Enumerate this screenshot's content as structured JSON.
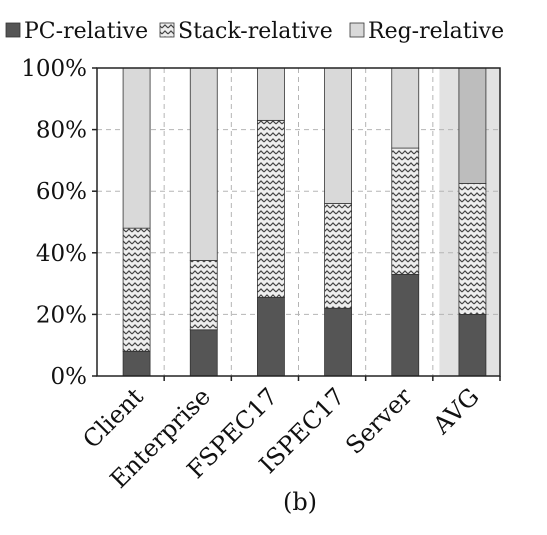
{
  "chart_data": {
    "type": "bar",
    "stacked": true,
    "categories": [
      "Client",
      "Enterprise",
      "FSPEC17",
      "ISPEC17",
      "Server",
      "AVG"
    ],
    "series": [
      {
        "name": "PC-relative",
        "values": [
          8,
          15,
          25.5,
          22,
          33,
          20
        ],
        "color": "#555555",
        "pattern": "solid"
      },
      {
        "name": "Stack-relative",
        "values": [
          40,
          22.5,
          57.5,
          34,
          41,
          42.5
        ],
        "color": "#d0d0d0",
        "pattern": "zigzag"
      },
      {
        "name": "Reg-relative",
        "values": [
          52,
          62.5,
          17,
          44,
          26,
          37.5
        ],
        "color": "#d9d9d9",
        "pattern": "solid"
      }
    ],
    "ylim": [
      0,
      100
    ],
    "yticks": [
      "0%",
      "20%",
      "40%",
      "60%",
      "80%",
      "100%"
    ],
    "grid": true,
    "legend": "top",
    "caption": "(b)"
  }
}
